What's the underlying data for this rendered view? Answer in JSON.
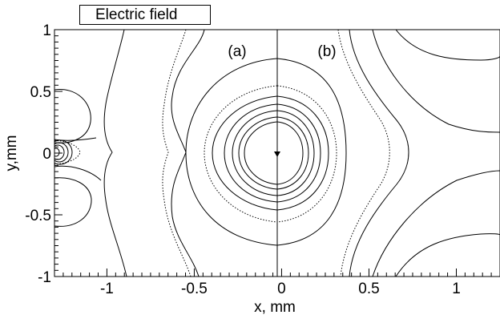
{
  "chart_data": {
    "type": "contour",
    "title": "Electric field",
    "xlabel": "x, mm",
    "ylabel": "y,mm",
    "xlim": [
      -1.3,
      1.25
    ],
    "ylim": [
      -1,
      1
    ],
    "x_ticks": [
      -1,
      -0.5,
      0,
      0.5,
      1
    ],
    "x_tick_labels": [
      "-1",
      "-0.5",
      "0",
      "0.5",
      "1"
    ],
    "y_ticks": [
      -1,
      -0.5,
      0,
      0.5,
      1
    ],
    "y_tick_labels": [
      "-1",
      "-0.5",
      "0",
      "0.5",
      "1"
    ],
    "panels": [
      {
        "label": "(a)",
        "x_range": [
          -1.3,
          0
        ]
      },
      {
        "label": "(b)",
        "x_range": [
          0,
          1.25
        ]
      }
    ],
    "grid": false,
    "line_styles": [
      "solid",
      "dotted"
    ]
  }
}
